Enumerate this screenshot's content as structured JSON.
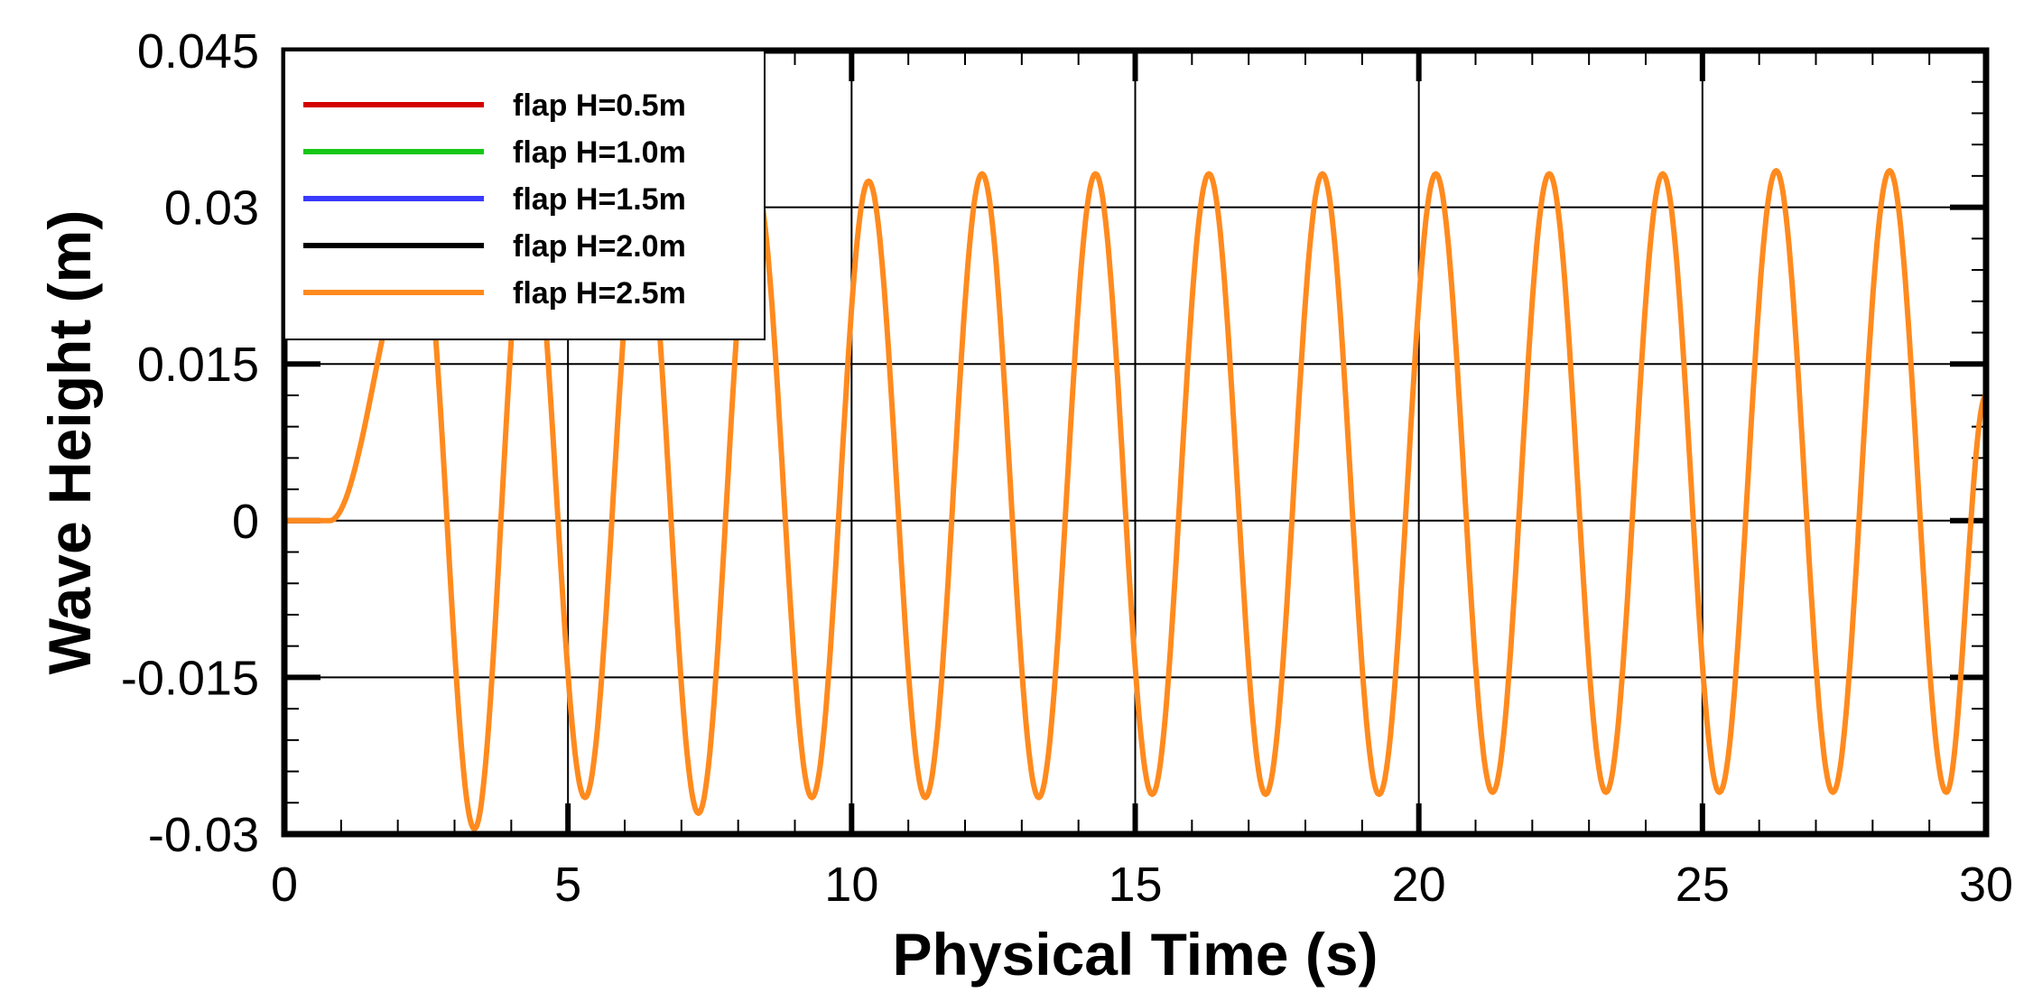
{
  "chart_data": {
    "type": "line",
    "xlabel": "Physical Time (s)",
    "ylabel": "Wave Height (m)",
    "xlim": [
      0,
      30
    ],
    "ylim": [
      -0.03,
      0.045
    ],
    "x_ticks": [
      0,
      5,
      10,
      15,
      20,
      25,
      30
    ],
    "x_tick_labels": [
      "0",
      "5",
      "10",
      "15",
      "20",
      "25",
      "30"
    ],
    "y_ticks": [
      -0.03,
      -0.015,
      0,
      0.015,
      0.03,
      0.045
    ],
    "y_tick_labels": [
      "-0.03",
      "-0.015",
      "0",
      "0.015",
      "0.03",
      "0.045"
    ],
    "grid": true,
    "legend_position": "top-left",
    "series": [
      {
        "name": "flap H=0.5m",
        "color": "#d40000"
      },
      {
        "name": "flap H=1.0m",
        "color": "#16c716"
      },
      {
        "name": "flap H=1.5m",
        "color": "#3a3aff"
      },
      {
        "name": "flap H=2.0m",
        "color": "#000000"
      },
      {
        "name": "flap H=2.5m",
        "color": "#ff8a1e"
      }
    ],
    "extrema": [
      {
        "x": 0.0,
        "y": 0.0
      },
      {
        "x": 0.8,
        "y": 0.0
      },
      {
        "x": 2.4,
        "y": 0.028
      },
      {
        "x": 3.35,
        "y": -0.0295
      },
      {
        "x": 4.3,
        "y": 0.031
      },
      {
        "x": 5.3,
        "y": -0.0265
      },
      {
        "x": 6.3,
        "y": 0.0315
      },
      {
        "x": 7.3,
        "y": -0.028
      },
      {
        "x": 8.3,
        "y": 0.0325
      },
      {
        "x": 9.3,
        "y": -0.0265
      },
      {
        "x": 10.3,
        "y": 0.0325
      },
      {
        "x": 11.3,
        "y": -0.0265
      },
      {
        "x": 12.3,
        "y": 0.0332
      },
      {
        "x": 13.3,
        "y": -0.0265
      },
      {
        "x": 14.3,
        "y": 0.0332
      },
      {
        "x": 15.3,
        "y": -0.0262
      },
      {
        "x": 16.3,
        "y": 0.0332
      },
      {
        "x": 17.3,
        "y": -0.0262
      },
      {
        "x": 18.3,
        "y": 0.0332
      },
      {
        "x": 19.3,
        "y": -0.0262
      },
      {
        "x": 20.3,
        "y": 0.0332
      },
      {
        "x": 21.3,
        "y": -0.026
      },
      {
        "x": 22.3,
        "y": 0.0332
      },
      {
        "x": 23.3,
        "y": -0.026
      },
      {
        "x": 24.3,
        "y": 0.0332
      },
      {
        "x": 25.3,
        "y": -0.026
      },
      {
        "x": 26.3,
        "y": 0.0335
      },
      {
        "x": 27.3,
        "y": -0.026
      },
      {
        "x": 28.3,
        "y": 0.0335
      },
      {
        "x": 29.3,
        "y": -0.026
      },
      {
        "x": 30.0,
        "y": 0.012
      }
    ]
  }
}
